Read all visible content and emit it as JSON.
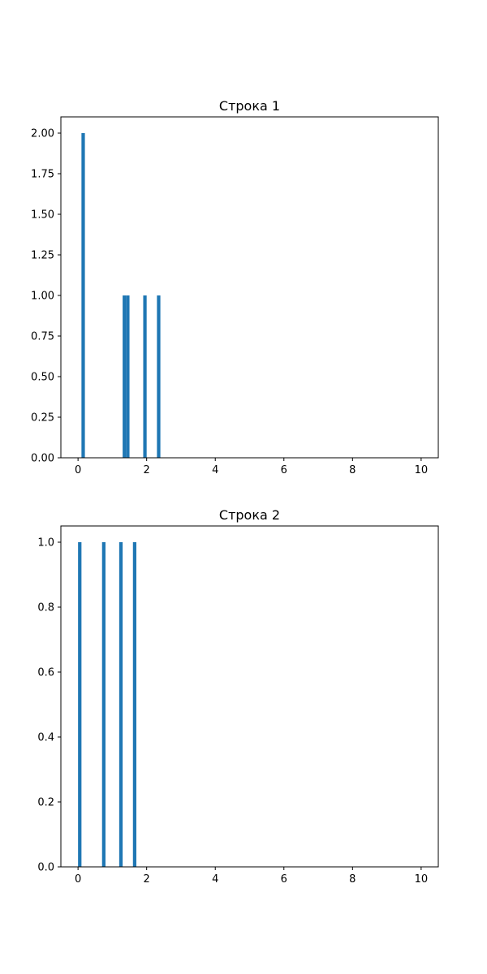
{
  "chart_data": [
    {
      "type": "bar",
      "title": "Строка 1",
      "xlabel": "",
      "ylabel": "",
      "xlim": [
        -0.5,
        10.5
      ],
      "ylim": [
        0,
        2.1
      ],
      "xticks": [
        0,
        2,
        4,
        6,
        8,
        10
      ],
      "yticks": [
        0.0,
        0.25,
        0.5,
        0.75,
        1.0,
        1.25,
        1.5,
        1.75,
        2.0
      ],
      "ytick_decimals": 2,
      "grid": false,
      "color": "#1f77b4",
      "bar_width": 0.1,
      "bars": [
        {
          "x": 0.15,
          "value": 2
        },
        {
          "x": 1.35,
          "value": 1
        },
        {
          "x": 1.45,
          "value": 1
        },
        {
          "x": 1.95,
          "value": 1
        },
        {
          "x": 2.35,
          "value": 1
        }
      ]
    },
    {
      "type": "bar",
      "title": "Строка 2",
      "xlabel": "",
      "ylabel": "",
      "xlim": [
        -0.5,
        10.5
      ],
      "ylim": [
        0,
        1.05
      ],
      "xticks": [
        0,
        2,
        4,
        6,
        8,
        10
      ],
      "yticks": [
        0.0,
        0.2,
        0.4,
        0.6,
        0.8,
        1.0
      ],
      "ytick_decimals": 1,
      "grid": false,
      "color": "#1f77b4",
      "bar_width": 0.1,
      "bars": [
        {
          "x": 0.05,
          "value": 1
        },
        {
          "x": 0.75,
          "value": 1
        },
        {
          "x": 1.25,
          "value": 1
        },
        {
          "x": 1.65,
          "value": 1
        }
      ]
    }
  ]
}
